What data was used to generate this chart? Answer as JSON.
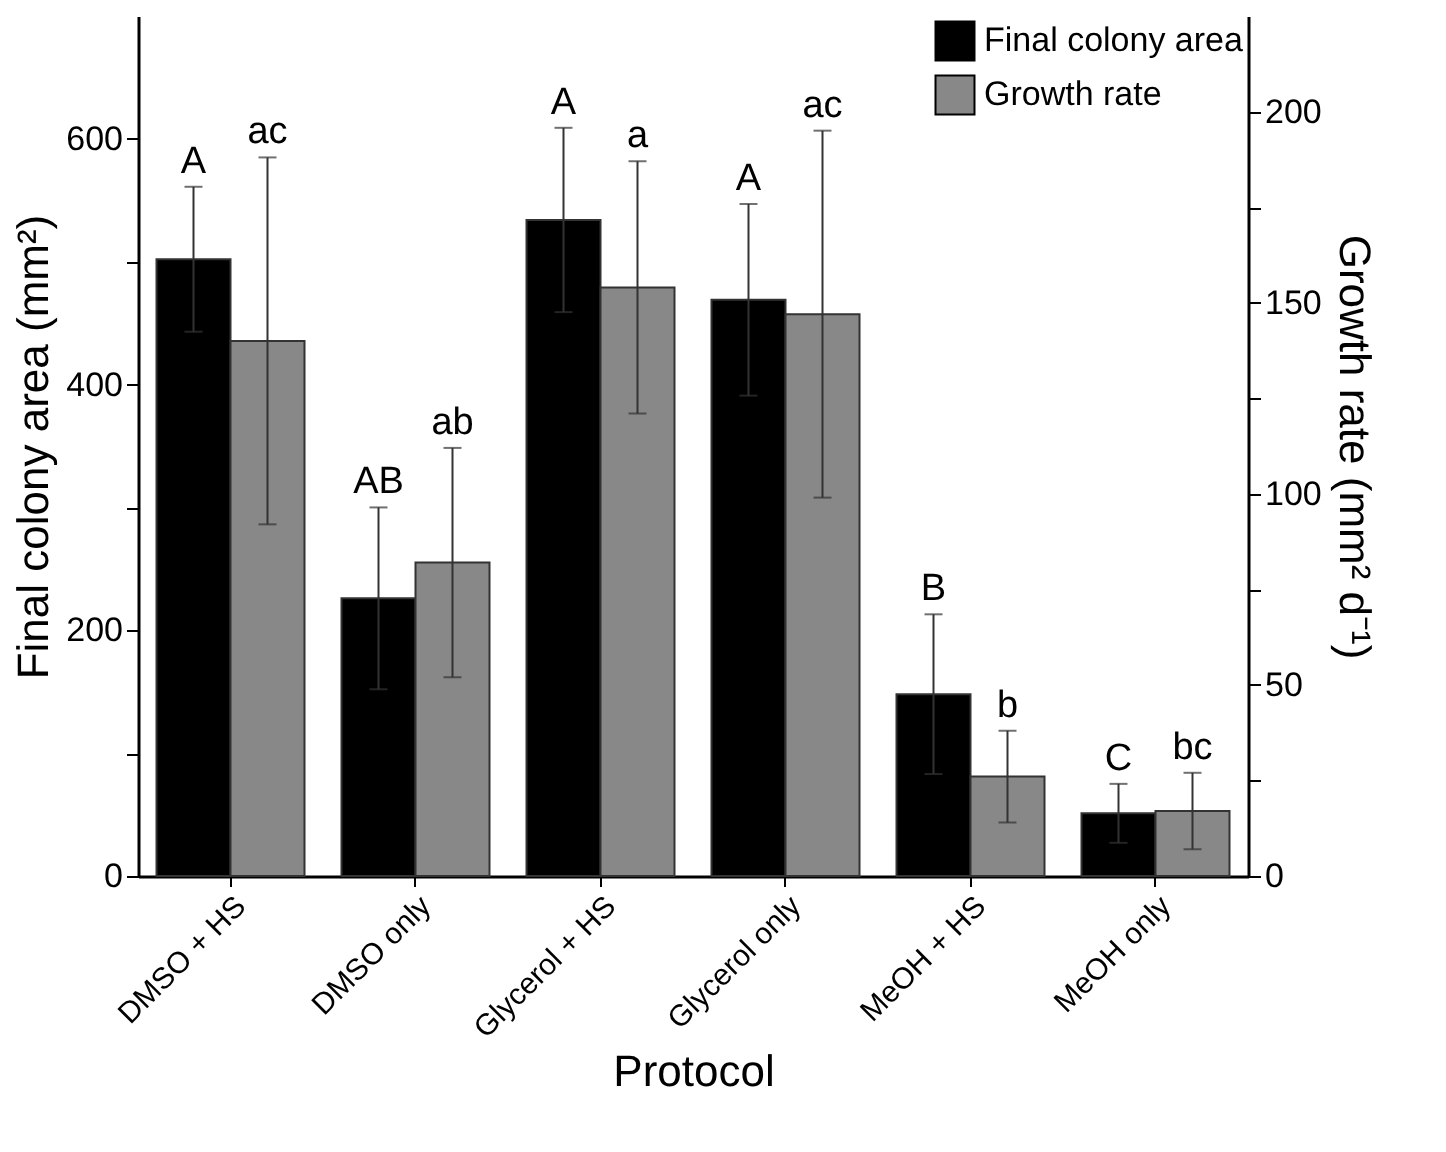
{
  "chart_data": {
    "type": "bar",
    "xlabel": "Protocol",
    "ylabel": "Final colony area (mm²)",
    "y2label": "Growth rate (mm² d⁻¹)",
    "categories": [
      "DMSO + HS",
      "DMSO only",
      "Glycerol + HS",
      "Glycerol only",
      "MeOH + HS",
      "MeOH only"
    ],
    "series": [
      {
        "name": "Final colony area",
        "color": "#000000",
        "values": [
          502,
          226,
          534,
          469,
          148,
          51
        ],
        "errors": [
          59,
          74,
          75,
          78,
          65,
          24
        ]
      },
      {
        "name": "Growth rate",
        "color": "#888888",
        "axis": "y2",
        "values": [
          140,
          82,
          154,
          147,
          26,
          17
        ],
        "errors": [
          48,
          30,
          33,
          48,
          12,
          10
        ]
      }
    ],
    "ylim": [
      0,
      700
    ],
    "yticks": [
      0,
      {
        "value": 100,
        "label": null
      },
      200,
      {
        "value": 300,
        "label": null
      },
      400,
      {
        "value": 500,
        "label": null
      },
      600
    ],
    "y2lim": [
      0,
      225
    ],
    "y2ticks": [
      0,
      {
        "value": 25,
        "label": null
      },
      50,
      {
        "value": 75,
        "label": null
      },
      100,
      {
        "value": 125,
        "label": null
      },
      150,
      {
        "value": 175,
        "label": null
      },
      200
    ],
    "annotations": [
      "A",
      "ac",
      "AB",
      "ab",
      "A",
      "a",
      "A",
      "ac",
      "B",
      "b",
      "C",
      "bc"
    ],
    "legend": "top right",
    "grid": false
  }
}
